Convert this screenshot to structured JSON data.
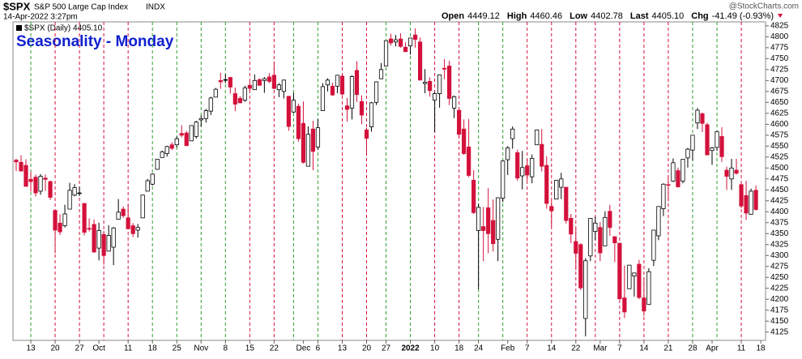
{
  "chart_data": {
    "type": "candlestick",
    "symbol": "$SPX",
    "name": "S&P 500 Large Cap Index",
    "exchange": "INDX",
    "date": "14-Apr-2022 3:27pm",
    "source": "@StockCharts.com",
    "quote": [
      {
        "label": "Open",
        "value": "4449.12"
      },
      {
        "label": "High",
        "value": "4460.46"
      },
      {
        "label": "Low",
        "value": "4402.78"
      },
      {
        "label": "Last",
        "value": "4405.10"
      },
      {
        "label": "Chg",
        "value": "-41.49 (-0.93%)"
      }
    ],
    "legend": "$SPX (Daily) 4405.10",
    "title": "Seasonality - Monday",
    "up_color": "#ffffff",
    "up_stroke": "#000000",
    "down_color": "#d3113b",
    "line_up_color": "#2e9e2e",
    "line_down_color": "#d3113b",
    "title_color": "#1020d0",
    "ylim": [
      4106,
      4834
    ],
    "yticks": [
      4125,
      4150,
      4175,
      4200,
      4225,
      4250,
      4275,
      4300,
      4325,
      4350,
      4375,
      4400,
      4425,
      4450,
      4475,
      4500,
      4525,
      4550,
      4575,
      4600,
      4625,
      4650,
      4675,
      4700,
      4725,
      4750,
      4775,
      4800,
      4825
    ],
    "categories": [
      null,
      null,
      null,
      "13",
      null,
      null,
      null,
      null,
      "20",
      null,
      null,
      null,
      null,
      "27",
      null,
      null,
      null,
      "Oct",
      null,
      null,
      null,
      null,
      null,
      "11",
      null,
      null,
      null,
      null,
      "18",
      null,
      null,
      null,
      null,
      "25",
      null,
      null,
      null,
      null,
      "Nov",
      null,
      null,
      null,
      null,
      "8",
      null,
      null,
      null,
      null,
      "15",
      null,
      null,
      null,
      null,
      "22",
      null,
      null,
      null,
      null,
      null,
      "Dec",
      null,
      null,
      "6",
      null,
      null,
      null,
      null,
      "13",
      null,
      null,
      null,
      null,
      "20",
      null,
      null,
      null,
      "27",
      null,
      null,
      null,
      null,
      "2022",
      null,
      null,
      null,
      null,
      "10",
      null,
      null,
      null,
      null,
      "18",
      null,
      null,
      null,
      "24",
      null,
      null,
      null,
      null,
      null,
      "Feb",
      null,
      null,
      null,
      "7",
      null,
      null,
      null,
      null,
      "14",
      null,
      null,
      null,
      null,
      "22",
      null,
      null,
      null,
      null,
      "Mar",
      null,
      null,
      null,
      "7",
      null,
      null,
      null,
      null,
      "14",
      null,
      null,
      null,
      null,
      "21",
      null,
      null,
      null,
      null,
      "28",
      null,
      null,
      null,
      "Apr",
      null,
      null,
      null,
      null,
      null,
      "11",
      null,
      null,
      null,
      "18"
    ],
    "marker_days": [
      3,
      8,
      13,
      18,
      23,
      28,
      33,
      38,
      43,
      48,
      53,
      57,
      62,
      67,
      72,
      76,
      81,
      86,
      91,
      95,
      100,
      105,
      110,
      115,
      119,
      124,
      129,
      134,
      139,
      144,
      149
    ],
    "ohlc": [
      [
        4518,
        4521,
        4493,
        4514
      ],
      [
        4513,
        4529,
        4492,
        4493
      ],
      [
        4506,
        4520,
        4457,
        4458
      ],
      [
        4474,
        4492,
        4446,
        4469
      ],
      [
        4479,
        4485,
        4435,
        4443
      ],
      [
        4447,
        4486,
        4439,
        4481
      ],
      [
        4477,
        4485,
        4448,
        4474
      ],
      [
        4469,
        4471,
        4427,
        4433
      ],
      [
        4403,
        4403,
        4305,
        4358
      ],
      [
        4374,
        4394,
        4347,
        4354
      ],
      [
        4368,
        4416,
        4364,
        4395
      ],
      [
        4406,
        4466,
        4406,
        4449
      ],
      [
        4438,
        4463,
        4435,
        4455
      ],
      [
        4442,
        4457,
        4436,
        4443
      ],
      [
        4419,
        4419,
        4346,
        4353
      ],
      [
        4362,
        4385,
        4355,
        4360
      ],
      [
        4371,
        4382,
        4306,
        4308
      ],
      [
        4317,
        4375,
        4289,
        4357
      ],
      [
        4348,
        4356,
        4279,
        4300
      ],
      [
        4310,
        4369,
        4309,
        4346
      ],
      [
        4319,
        4365,
        4278,
        4363
      ],
      [
        4383,
        4429,
        4383,
        4399
      ],
      [
        4406,
        4412,
        4386,
        4391
      ],
      [
        4386,
        4415,
        4361,
        4361
      ],
      [
        4368,
        4374,
        4342,
        4350
      ],
      [
        4358,
        4372,
        4341,
        4364
      ],
      [
        4386,
        4439,
        4386,
        4438
      ],
      [
        4447,
        4475,
        4447,
        4471
      ],
      [
        4463,
        4488,
        4460,
        4486
      ],
      [
        4497,
        4520,
        4496,
        4520
      ],
      [
        4524,
        4540,
        4524,
        4537
      ],
      [
        4533,
        4551,
        4526,
        4549
      ],
      [
        4553,
        4559,
        4541,
        4545
      ],
      [
        4553,
        4572,
        4547,
        4567
      ],
      [
        4579,
        4598,
        4570,
        4575
      ],
      [
        4580,
        4585,
        4551,
        4551
      ],
      [
        4562,
        4597,
        4562,
        4597
      ],
      [
        4572,
        4608,
        4567,
        4605
      ],
      [
        4610,
        4620,
        4595,
        4613
      ],
      [
        4613,
        4635,
        4604,
        4631
      ],
      [
        4630,
        4663,
        4621,
        4660
      ],
      [
        4662,
        4683,
        4662,
        4680
      ],
      [
        4700,
        4718,
        4681,
        4697
      ],
      [
        4701,
        4714,
        4694,
        4702
      ],
      [
        4707,
        4708,
        4670,
        4685
      ],
      [
        4670,
        4684,
        4630,
        4646
      ],
      [
        4659,
        4664,
        4648,
        4649
      ],
      [
        4655,
        4688,
        4651,
        4683
      ],
      [
        4689,
        4698,
        4673,
        4682
      ],
      [
        4679,
        4714,
        4679,
        4700
      ],
      [
        4702,
        4705,
        4688,
        4689
      ],
      [
        4700,
        4708,
        4672,
        4704
      ],
      [
        4708,
        4717,
        4694,
        4698
      ],
      [
        4712,
        4743,
        4680,
        4682
      ],
      [
        4679,
        4694,
        4662,
        4690
      ],
      [
        4675,
        4702,
        4659,
        4701
      ],
      [
        4664,
        4664,
        4585,
        4595
      ],
      [
        4628,
        4672,
        4626,
        4655
      ],
      [
        4641,
        4647,
        4560,
        4567
      ],
      [
        4602,
        4652,
        4510,
        4513
      ],
      [
        4504,
        4595,
        4504,
        4577
      ],
      [
        4589,
        4608,
        4495,
        4538
      ],
      [
        4548,
        4612,
        4541,
        4592
      ],
      [
        4631,
        4694,
        4631,
        4686
      ],
      [
        4690,
        4705,
        4675,
        4701
      ],
      [
        4687,
        4695,
        4665,
        4667
      ],
      [
        4687,
        4713,
        4671,
        4712
      ],
      [
        4710,
        4710,
        4666,
        4669
      ],
      [
        4642,
        4660,
        4606,
        4634
      ],
      [
        4637,
        4712,
        4611,
        4709
      ],
      [
        4723,
        4744,
        4651,
        4668
      ],
      [
        4652,
        4666,
        4600,
        4621
      ],
      [
        4587,
        4592,
        4531,
        4568
      ],
      [
        4594,
        4651,
        4583,
        4649
      ],
      [
        4650,
        4698,
        4644,
        4697
      ],
      [
        4704,
        4740,
        4703,
        4725
      ],
      [
        4733,
        4791,
        4733,
        4791
      ],
      [
        4795,
        4807,
        4780,
        4786
      ],
      [
        4788,
        4804,
        4778,
        4793
      ],
      [
        4795,
        4808,
        4775,
        4778
      ],
      [
        4776,
        4787,
        4765,
        4766
      ],
      [
        4779,
        4797,
        4759,
        4797
      ],
      [
        4804,
        4819,
        4775,
        4794
      ],
      [
        4788,
        4798,
        4700,
        4701
      ],
      [
        4693,
        4726,
        4671,
        4696
      ],
      [
        4698,
        4707,
        4663,
        4677
      ],
      [
        4655,
        4673,
        4582,
        4670
      ],
      [
        4670,
        4714,
        4638,
        4713
      ],
      [
        4728,
        4749,
        4703,
        4726
      ],
      [
        4733,
        4745,
        4644,
        4659
      ],
      [
        4637,
        4666,
        4614,
        4663
      ],
      [
        4632,
        4632,
        4568,
        4577
      ],
      [
        4589,
        4611,
        4530,
        4533
      ],
      [
        4548,
        4612,
        4479,
        4483
      ],
      [
        4472,
        4495,
        4395,
        4398
      ],
      [
        4357,
        4418,
        4223,
        4410
      ],
      [
        4366,
        4411,
        4287,
        4357
      ],
      [
        4409,
        4454,
        4305,
        4350
      ],
      [
        4380,
        4428,
        4309,
        4327
      ],
      [
        4337,
        4432,
        4287,
        4432
      ],
      [
        4431,
        4517,
        4422,
        4516
      ],
      [
        4519,
        4550,
        4484,
        4546
      ],
      [
        4567,
        4595,
        4544,
        4589
      ],
      [
        4535,
        4542,
        4471,
        4477
      ],
      [
        4482,
        4539,
        4451,
        4501
      ],
      [
        4505,
        4521,
        4471,
        4484
      ],
      [
        4480,
        4531,
        4465,
        4522
      ],
      [
        4553,
        4588,
        4553,
        4587
      ],
      [
        4554,
        4589,
        4492,
        4504
      ],
      [
        4506,
        4527,
        4407,
        4419
      ],
      [
        4412,
        4426,
        4365,
        4402
      ],
      [
        4429,
        4473,
        4429,
        4472
      ],
      [
        4456,
        4489,
        4429,
        4475
      ],
      [
        4456,
        4456,
        4373,
        4380
      ],
      [
        4385,
        4395,
        4328,
        4349
      ],
      [
        4332,
        4363,
        4267,
        4305
      ],
      [
        4325,
        4328,
        4221,
        4226
      ],
      [
        4156,
        4294,
        4115,
        4288
      ],
      [
        4299,
        4385,
        4287,
        4385
      ],
      [
        4355,
        4389,
        4335,
        4374
      ],
      [
        4364,
        4376,
        4287,
        4306
      ],
      [
        4322,
        4401,
        4322,
        4387
      ],
      [
        4401,
        4416,
        4345,
        4364
      ],
      [
        4343,
        4344,
        4285,
        4329
      ],
      [
        4328,
        4329,
        4199,
        4201
      ],
      [
        4203,
        4277,
        4157,
        4171
      ],
      [
        4224,
        4278,
        4224,
        4278
      ],
      [
        4253,
        4261,
        4206,
        4260
      ],
      [
        4280,
        4290,
        4200,
        4204
      ],
      [
        4203,
        4248,
        4162,
        4173
      ],
      [
        4188,
        4271,
        4187,
        4263
      ],
      [
        4289,
        4358,
        4276,
        4358
      ],
      [
        4345,
        4412,
        4335,
        4412
      ],
      [
        4407,
        4465,
        4390,
        4463
      ],
      [
        4462,
        4481,
        4424,
        4461
      ],
      [
        4470,
        4522,
        4468,
        4512
      ],
      [
        4494,
        4501,
        4455,
        4457
      ],
      [
        4470,
        4520,
        4465,
        4520
      ],
      [
        4523,
        4546,
        4501,
        4543
      ],
      [
        4541,
        4575,
        4517,
        4575
      ],
      [
        4603,
        4637,
        4589,
        4632
      ],
      [
        4624,
        4627,
        4582,
        4602
      ],
      [
        4599,
        4603,
        4530,
        4530
      ],
      [
        4540,
        4548,
        4507,
        4546
      ],
      [
        4547,
        4583,
        4539,
        4583
      ],
      [
        4572,
        4593,
        4514,
        4526
      ],
      [
        4495,
        4503,
        4450,
        4481
      ],
      [
        4475,
        4521,
        4450,
        4500
      ],
      [
        4495,
        4521,
        4485,
        4488
      ],
      [
        4462,
        4464,
        4408,
        4413
      ],
      [
        4437,
        4471,
        4381,
        4397
      ],
      [
        4394,
        4453,
        4393,
        4447
      ],
      [
        4449.12,
        4460.46,
        4402.78,
        4405.1
      ],
      null
    ]
  }
}
